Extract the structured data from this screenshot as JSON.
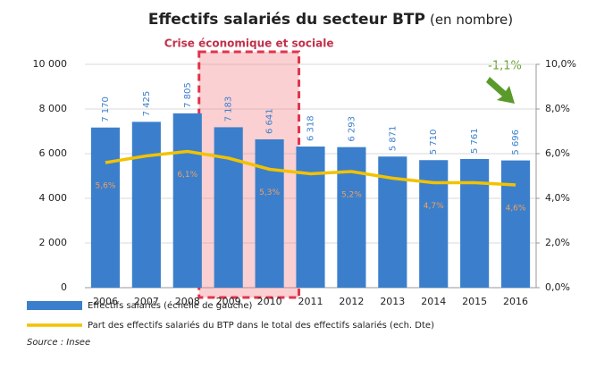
{
  "chart_data": {
    "type": "bar_line",
    "title": "Effectifs salariés du secteur BTP",
    "subtitle": "(en nombre)",
    "annotations": [
      "Crise économique et sociale",
      "-1,1%"
    ],
    "source": "Source : Insee",
    "categories": [
      "2006",
      "2007",
      "2008",
      "2009",
      "2010",
      "2011",
      "2012",
      "2013",
      "2014",
      "2015",
      "2016"
    ],
    "series": [
      {
        "name": "Effectifs salariés (échelle de gauche)",
        "type": "bar",
        "color": "#3b7fcc",
        "values": [
          7170,
          7425,
          7805,
          7183,
          6641,
          6318,
          6293,
          5871,
          5710,
          5761,
          5696
        ],
        "value_labels": [
          "7 170",
          "7 425",
          "7 805",
          "7 183",
          "6 641",
          "6 318",
          "6 293",
          "5 871",
          "5 710",
          "5 761",
          "5 696"
        ]
      },
      {
        "name": "Part des effectifs salariés du BTP dans le total des effectifs salariés (ech. Dte)",
        "type": "line",
        "color": "#f2c200",
        "axis": "y2",
        "values": [
          5.6,
          5.9,
          6.1,
          5.8,
          5.3,
          5.1,
          5.2,
          4.9,
          4.7,
          4.7,
          4.6
        ],
        "value_labels": [
          "5,6%",
          null,
          "6,1%",
          null,
          "5,3%",
          null,
          "5,2%",
          null,
          "4,7%",
          null,
          "4,6%"
        ]
      }
    ],
    "ylim": [
      0,
      10000
    ],
    "yticks": [
      0,
      {
        "value": 2000,
        "label": "2 000"
      },
      {
        "value": 4000,
        "label": "4 000"
      },
      {
        "value": 6000,
        "label": "6 000"
      },
      {
        "value": 8000,
        "label": "8 000"
      },
      {
        "value": 10000,
        "label": "10 000"
      }
    ],
    "y2lim": [
      0,
      10
    ],
    "y2ticks": [
      {
        "value": 0,
        "label": "0,0%"
      },
      {
        "value": 2,
        "label": "2,0%"
      },
      {
        "value": 4,
        "label": "4,0%"
      },
      {
        "value": 6,
        "label": "6,0%"
      },
      {
        "value": 8,
        "label": "8,0%"
      },
      {
        "value": 10,
        "label": "10,0%"
      }
    ],
    "grid": true
  }
}
